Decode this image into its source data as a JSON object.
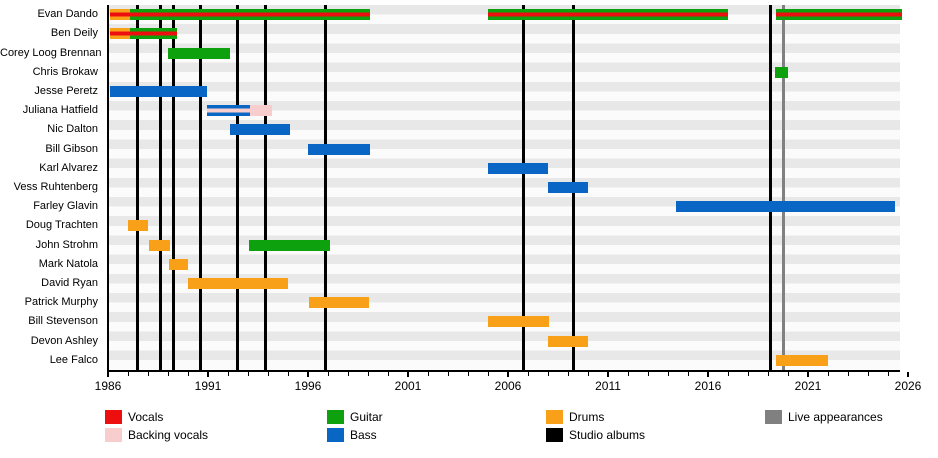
{
  "chart_data": {
    "type": "bar",
    "variant": "gantt-timeline-band-members",
    "title": "",
    "xlabel": "",
    "ylabel": "",
    "x_axis": {
      "start_year": 1986,
      "end_year": 2026,
      "major_ticks": [
        1986,
        1991,
        1996,
        2001,
        2006,
        2011,
        2016,
        2021,
        2026
      ],
      "minor_tick_every_years": 1,
      "grid": "off"
    },
    "colors": {
      "vocals": "#ed0f0f",
      "backing_vocals": "#f8cdcd",
      "guitar": "#0da10d",
      "bass": "#0a66c4",
      "drums": "#f9a019",
      "studio_albums": "#000000",
      "live_appearances": "#808080",
      "stripe_dark": "#e8e8e8",
      "stripe_light": "#fbfbfb"
    },
    "rows": [
      {
        "name": "Evan Dando",
        "bars": [
          {
            "from": 1986.1,
            "to": 1987.1,
            "layers": [
              "drums",
              "vocals",
              "drums"
            ]
          },
          {
            "from": 1987.1,
            "to": 1999.1,
            "layers": [
              "guitar",
              "vocals",
              "guitar"
            ]
          },
          {
            "from": 2005.0,
            "to": 2017.0,
            "layers": [
              "guitar",
              "vocals",
              "guitar"
            ]
          },
          {
            "from": 2019.4,
            "to": 2025.7,
            "layers": [
              "guitar",
              "vocals",
              "guitar"
            ]
          }
        ]
      },
      {
        "name": "Ben Deily",
        "bars": [
          {
            "from": 1986.1,
            "to": 1987.1,
            "layers": [
              "drums",
              "vocals",
              "drums"
            ]
          },
          {
            "from": 1987.1,
            "to": 1989.45,
            "layers": [
              "guitar",
              "vocals",
              "guitar"
            ]
          }
        ]
      },
      {
        "name": "Corey Loog Brennan",
        "bars": [
          {
            "from": 1989.0,
            "to": 1992.1,
            "layers": [
              "guitar"
            ]
          }
        ]
      },
      {
        "name": "Chris Brokaw",
        "bars": [
          {
            "from": 2019.35,
            "to": 2020.0,
            "layers": [
              "guitar"
            ]
          }
        ]
      },
      {
        "name": "Jesse Peretz",
        "bars": [
          {
            "from": 1986.1,
            "to": 1990.95,
            "layers": [
              "bass"
            ]
          }
        ]
      },
      {
        "name": "Juliana Hatfield",
        "bars": [
          {
            "from": 1990.95,
            "to": 1993.1,
            "layers": [
              "bass",
              "backing_vocals",
              "bass"
            ]
          },
          {
            "from": 1993.1,
            "to": 1994.2,
            "layers": [
              "backing_vocals"
            ]
          }
        ]
      },
      {
        "name": "Nic Dalton",
        "bars": [
          {
            "from": 1992.1,
            "to": 1995.1,
            "layers": [
              "bass"
            ]
          }
        ]
      },
      {
        "name": "Bill Gibson",
        "bars": [
          {
            "from": 1996.0,
            "to": 1999.1,
            "layers": [
              "bass"
            ]
          }
        ]
      },
      {
        "name": "Karl Alvarez",
        "bars": [
          {
            "from": 2005.0,
            "to": 2008.0,
            "layers": [
              "bass"
            ]
          }
        ]
      },
      {
        "name": "Vess Ruhtenberg",
        "bars": [
          {
            "from": 2008.0,
            "to": 2010.0,
            "layers": [
              "bass"
            ]
          }
        ]
      },
      {
        "name": "Farley Glavin",
        "bars": [
          {
            "from": 2014.4,
            "to": 2025.35,
            "layers": [
              "bass"
            ]
          }
        ]
      },
      {
        "name": "Doug Trachten",
        "bars": [
          {
            "from": 1987.0,
            "to": 1988.0,
            "layers": [
              "drums"
            ]
          }
        ]
      },
      {
        "name": "John Strohm",
        "bars": [
          {
            "from": 1988.05,
            "to": 1989.1,
            "layers": [
              "drums"
            ]
          },
          {
            "from": 1993.05,
            "to": 1997.1,
            "layers": [
              "guitar"
            ]
          }
        ]
      },
      {
        "name": "Mark Natola",
        "bars": [
          {
            "from": 1989.05,
            "to": 1990.0,
            "layers": [
              "drums"
            ]
          }
        ]
      },
      {
        "name": "David Ryan",
        "bars": [
          {
            "from": 1990.0,
            "to": 1995.0,
            "layers": [
              "drums"
            ]
          }
        ]
      },
      {
        "name": "Patrick Murphy",
        "bars": [
          {
            "from": 1996.05,
            "to": 1999.05,
            "layers": [
              "drums"
            ]
          }
        ]
      },
      {
        "name": "Bill Stevenson",
        "bars": [
          {
            "from": 2005.0,
            "to": 2008.05,
            "layers": [
              "drums"
            ]
          }
        ]
      },
      {
        "name": "Devon Ashley",
        "bars": [
          {
            "from": 2008.0,
            "to": 2010.0,
            "layers": [
              "drums"
            ]
          }
        ]
      },
      {
        "name": "Lee Falco",
        "bars": [
          {
            "from": 2019.4,
            "to": 2022.0,
            "layers": [
              "drums"
            ]
          }
        ]
      }
    ],
    "studio_album_lines_years": [
      1987.45,
      1988.6,
      1989.25,
      1990.6,
      1992.45,
      1993.85,
      1996.85,
      2006.75,
      2009.25,
      2019.1
    ],
    "live_appearance_lines_years": [
      2019.75
    ],
    "legend_position": "bottom"
  },
  "legend": {
    "items": [
      {
        "label": "Vocals",
        "role": "vocals"
      },
      {
        "label": "Backing vocals",
        "role": "backing_vocals"
      },
      {
        "label": "Guitar",
        "role": "guitar"
      },
      {
        "label": "Bass",
        "role": "bass"
      },
      {
        "label": "Drums",
        "role": "drums"
      },
      {
        "label": "Studio albums",
        "role": "studio_albums"
      },
      {
        "label": "Live appearances",
        "role": "live_appearances"
      }
    ]
  }
}
